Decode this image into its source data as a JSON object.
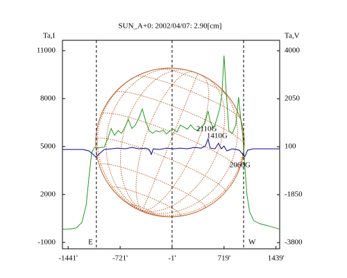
{
  "chart_data": {
    "type": "line",
    "title": "SUN_A+0: 2002/04/07: 2.90[cm]",
    "y_label": "Ta,I",
    "y2_label": "Ta,V",
    "xlim": [
      -1520,
      1490
    ],
    "ylim": [
      -1400,
      11650
    ],
    "y2lim": [
      -4050,
      4425
    ],
    "xticks": [
      {
        "value": -1441,
        "label": "-1441'"
      },
      {
        "value": -721,
        "label": "-721'"
      },
      {
        "value": -1,
        "label": "-1'"
      },
      {
        "value": 719,
        "label": "719'"
      },
      {
        "value": 1439,
        "label": "1439'"
      }
    ],
    "yticks": [
      11000,
      8000,
      5000,
      2000,
      -1000
    ],
    "y2ticks": [
      4000,
      2050,
      100,
      -1850,
      -3800
    ],
    "vlines": [
      {
        "x": -1050,
        "label": "E"
      },
      {
        "x": -1
      },
      {
        "x": 990,
        "label": "W"
      }
    ],
    "series": [
      {
        "name": "Ta,I",
        "color": "#1f9a1f",
        "x": [
          -1518,
          -1422,
          -1326,
          -1249,
          -1191,
          -1153,
          -1115,
          -1076,
          -1038,
          -942,
          -894,
          -846,
          -798,
          -750,
          -702,
          -654,
          -606,
          -558,
          -510,
          -462,
          -414,
          -366,
          -318,
          -270,
          -222,
          -174,
          -126,
          -78,
          -30,
          18,
          66,
          114,
          162,
          210,
          258,
          306,
          354,
          402,
          450,
          498,
          527,
          575,
          623,
          662,
          690,
          719,
          748,
          786,
          834,
          882,
          921,
          950,
          978,
          1007,
          1036,
          1074,
          1132,
          1218,
          1362,
          1490
        ],
        "values": [
          -170,
          -170,
          -90,
          260,
          1350,
          3090,
          4610,
          4960,
          4910,
          4960,
          5480,
          6130,
          5700,
          6000,
          5830,
          6220,
          6700,
          6130,
          6350,
          6780,
          7350,
          6570,
          6000,
          5830,
          6000,
          5910,
          6040,
          5780,
          6000,
          6090,
          5910,
          6350,
          6220,
          6090,
          6350,
          6090,
          6000,
          6220,
          6430,
          7220,
          6570,
          6130,
          6780,
          7430,
          8300,
          10700,
          8520,
          6000,
          5830,
          6350,
          8090,
          6780,
          5700,
          3740,
          2000,
          910,
          350,
          170,
          0,
          -170
        ]
      },
      {
        "name": "Ta,V",
        "color": "#00009c",
        "axis": "y2",
        "x": [
          -1518,
          -1230,
          -1153,
          -1095,
          -1057,
          -1018,
          -942,
          -846,
          -750,
          -654,
          -558,
          -462,
          -366,
          -318,
          -289,
          -260,
          -174,
          -78,
          18,
          114,
          210,
          306,
          402,
          460,
          498,
          527,
          594,
          642,
          681,
          719,
          758,
          834,
          930,
          978,
          1007,
          1046,
          1122,
          1490
        ],
        "values": [
          -13,
          -13,
          -70,
          -210,
          -324,
          -210,
          -13,
          15,
          43,
          15,
          72,
          15,
          43,
          -13,
          -210,
          15,
          -13,
          43,
          15,
          43,
          15,
          72,
          43,
          128,
          410,
          43,
          15,
          241,
          15,
          128,
          -70,
          15,
          -41,
          -210,
          -295,
          -41,
          15,
          15
        ]
      }
    ],
    "annotations": [
      {
        "text": "2110G",
        "x": 335,
        "y": 6090
      },
      {
        "text": "1410G",
        "x": 479,
        "y": 5650
      },
      {
        "text": "2060G",
        "x": 796,
        "y": 3830
      }
    ]
  }
}
